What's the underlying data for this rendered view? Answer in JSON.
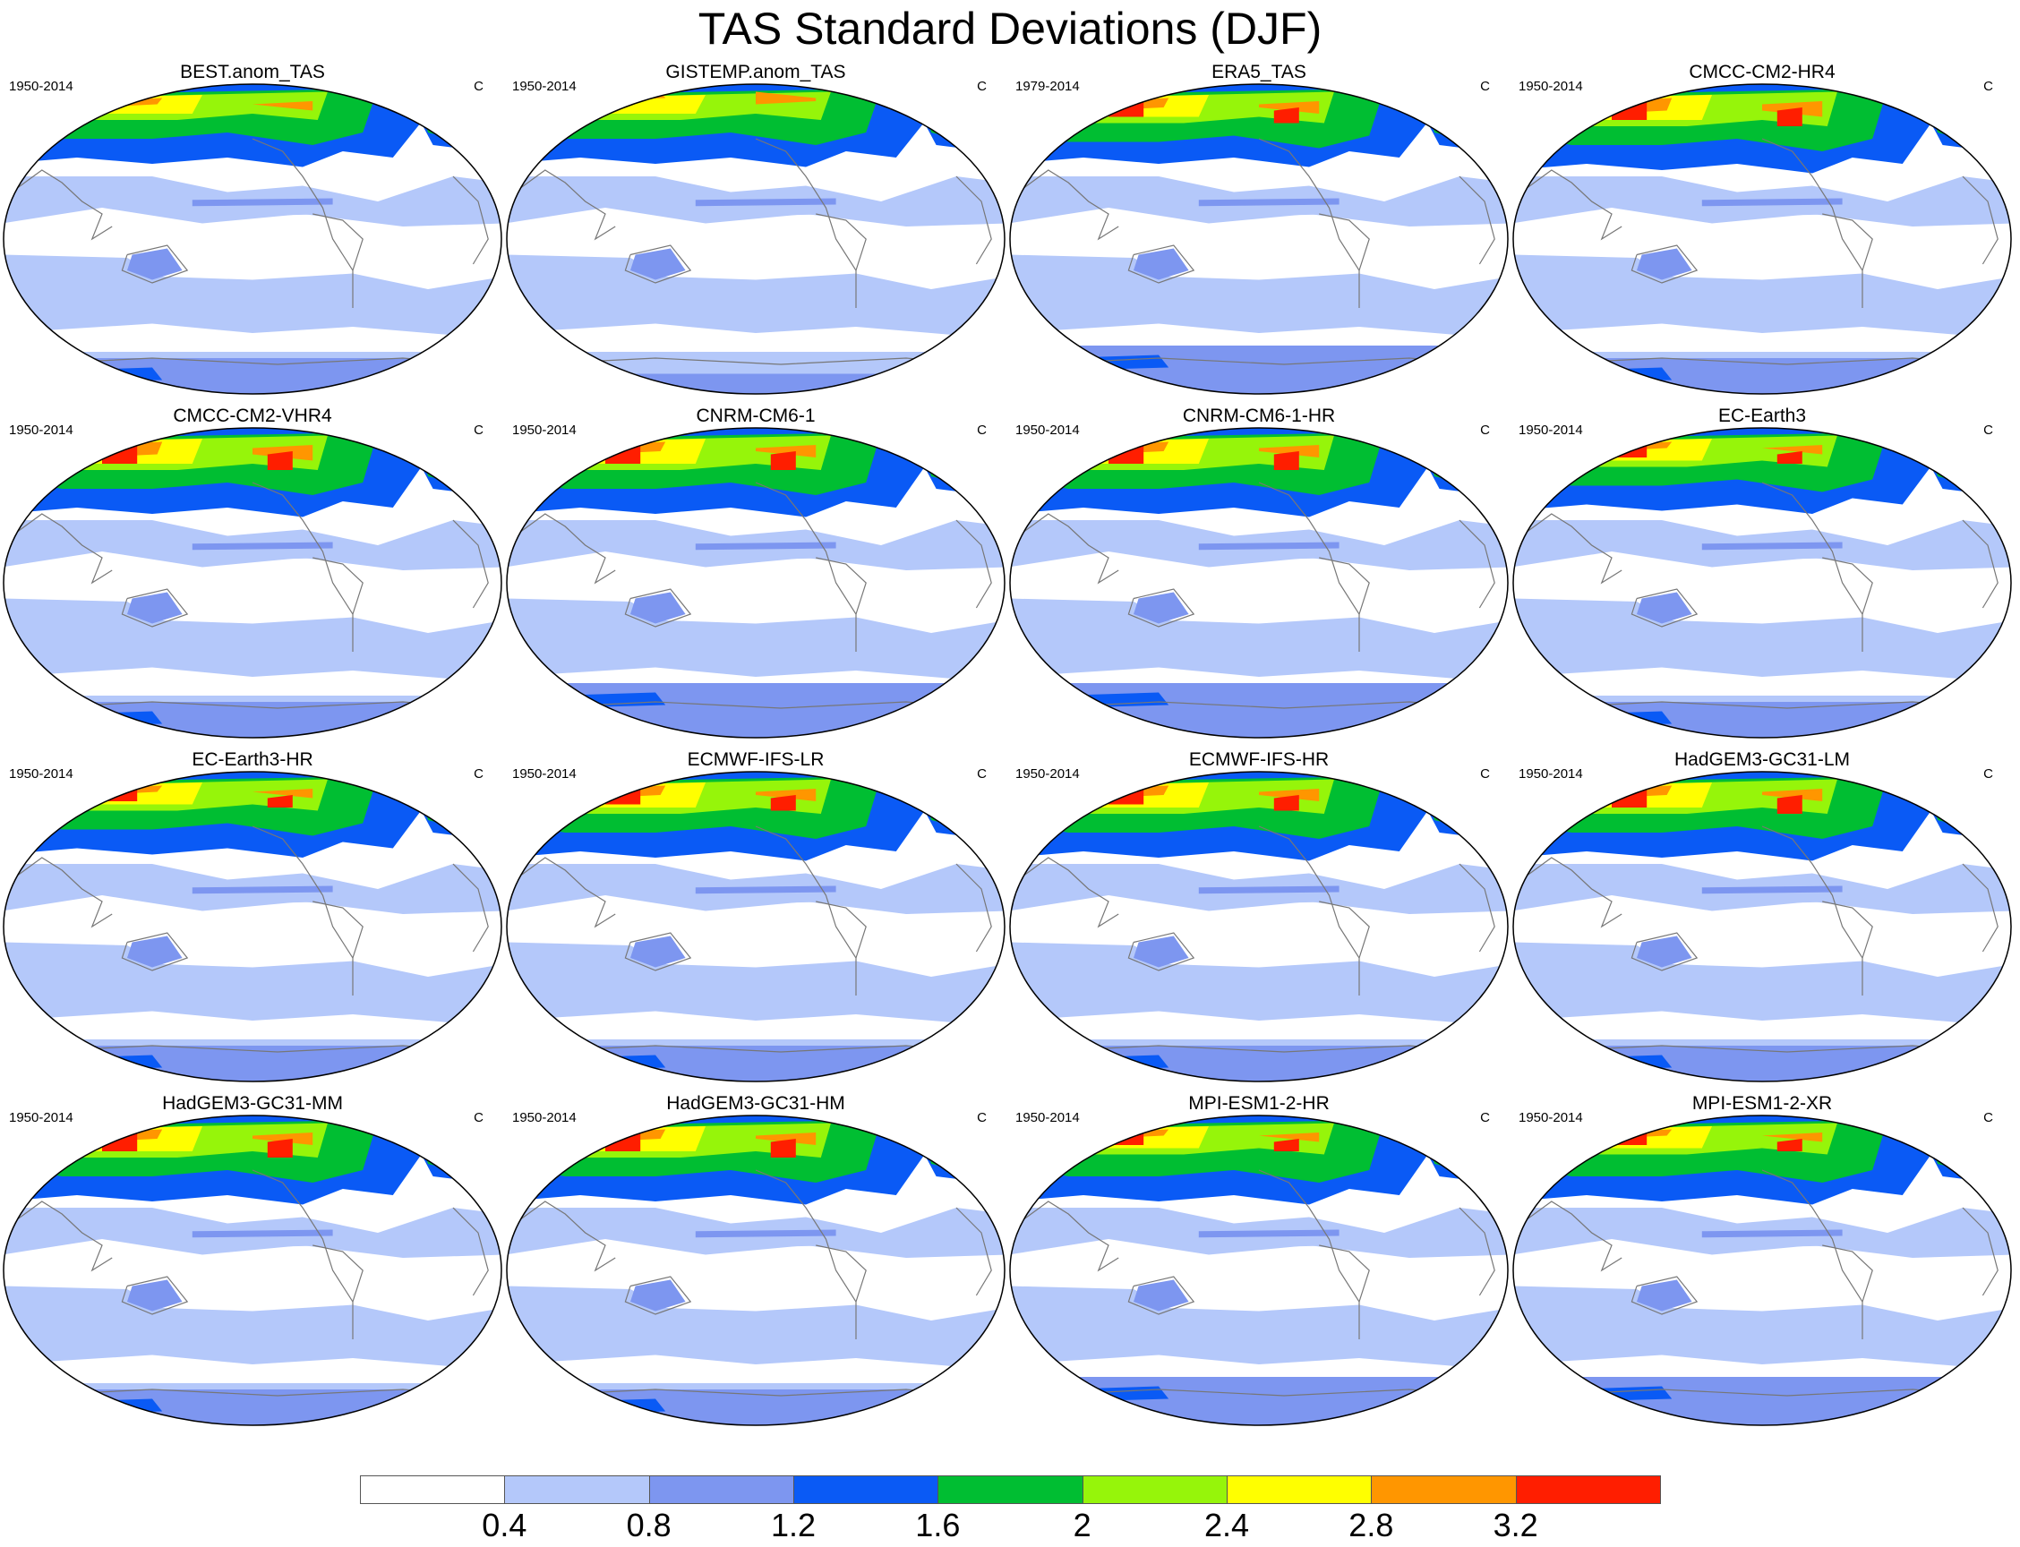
{
  "title": "TAS Standard Deviations (DJF)",
  "units": "C",
  "panels": [
    {
      "name": "BEST.anom_TAS",
      "years": "1950-2014",
      "variant": "best"
    },
    {
      "name": "GISTEMP.anom_TAS",
      "years": "1950-2014",
      "variant": "gistemp"
    },
    {
      "name": "ERA5_TAS",
      "years": "1979-2014",
      "variant": "era5"
    },
    {
      "name": "CMCC-CM2-HR4",
      "years": "1950-2014",
      "variant": "strong"
    },
    {
      "name": "CMCC-CM2-VHR4",
      "years": "1950-2014",
      "variant": "strong"
    },
    {
      "name": "CNRM-CM6-1",
      "years": "1950-2014",
      "variant": "cnrm"
    },
    {
      "name": "CNRM-CM6-1-HR",
      "years": "1950-2014",
      "variant": "cnrm"
    },
    {
      "name": "EC-Earth3",
      "years": "1950-2014",
      "variant": "ec"
    },
    {
      "name": "EC-Earth3-HR",
      "years": "1950-2014",
      "variant": "ec"
    },
    {
      "name": "ECMWF-IFS-LR",
      "years": "1950-2014",
      "variant": "ecmwf"
    },
    {
      "name": "ECMWF-IFS-HR",
      "years": "1950-2014",
      "variant": "ecmwf"
    },
    {
      "name": "HadGEM3-GC31-LM",
      "years": "1950-2014",
      "variant": "hadgem"
    },
    {
      "name": "HadGEM3-GC31-MM",
      "years": "1950-2014",
      "variant": "hadgem"
    },
    {
      "name": "HadGEM3-GC31-HM",
      "years": "1950-2014",
      "variant": "hadgem"
    },
    {
      "name": "MPI-ESM1-2-HR",
      "years": "1950-2014",
      "variant": "mpi"
    },
    {
      "name": "MPI-ESM1-2-XR",
      "years": "1950-2014",
      "variant": "mpi"
    }
  ],
  "colorbar": {
    "colors": [
      "#ffffff",
      "#b4c8fa",
      "#7d96f0",
      "#0a5af5",
      "#00be32",
      "#96f50a",
      "#ffff00",
      "#ff9600",
      "#ff1e00"
    ],
    "labels": [
      "0.4",
      "0.8",
      "1.2",
      "1.6",
      "2",
      "2.4",
      "2.8",
      "3.2"
    ]
  }
}
